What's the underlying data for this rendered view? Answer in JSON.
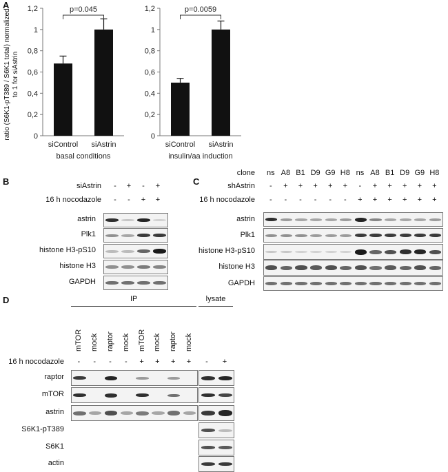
{
  "panels": {
    "a": "A",
    "b": "B",
    "c": "C",
    "d": "D"
  },
  "chart_data": [
    {
      "type": "bar",
      "categories": [
        "siControl",
        "siAstrin"
      ],
      "values": [
        0.68,
        1.0
      ],
      "errors": [
        0.07,
        0.1
      ],
      "xlabel": "basal conditions",
      "ylabel": "ratio (S6K1-pT389 / S6K1 total) normalized to 1 for siAstrin",
      "yticks": [
        "0",
        "0,2",
        "0,4",
        "0,6",
        "0,8",
        "1",
        "1,2"
      ],
      "ylim": [
        0,
        1.2
      ],
      "annotation": "p=0.045",
      "bar_color": "#111111"
    },
    {
      "type": "bar",
      "categories": [
        "siControl",
        "siAstrin"
      ],
      "values": [
        0.5,
        1.0
      ],
      "errors": [
        0.04,
        0.08
      ],
      "xlabel": "insulin/aa induction",
      "ylabel": "",
      "yticks": [
        "0",
        "0,2",
        "0,4",
        "0,6",
        "0,8",
        "1",
        "1,2"
      ],
      "ylim": [
        0,
        1.2
      ],
      "annotation": "p=0.0059",
      "bar_color": "#111111"
    }
  ],
  "panel_b": {
    "conditions": [
      {
        "label": "siAstrin",
        "signs": [
          "-",
          "+",
          "-",
          "+"
        ]
      },
      {
        "label": "16 h nocodazole",
        "signs": [
          "-",
          "-",
          "+",
          "+"
        ]
      }
    ],
    "blots": [
      "astrin",
      "Plk1",
      "histone H3-pS10",
      "histone H3",
      "GAPDH"
    ]
  },
  "panel_c": {
    "clone_label": "clone",
    "clones": [
      "ns",
      "A8",
      "B1",
      "D9",
      "G9",
      "H8",
      "ns",
      "A8",
      "B1",
      "D9",
      "G9",
      "H8"
    ],
    "conditions": [
      {
        "label": "shAstrin",
        "signs": [
          "-",
          "+",
          "+",
          "+",
          "+",
          "+",
          "-",
          "+",
          "+",
          "+",
          "+",
          "+"
        ]
      },
      {
        "label": "16 h nocodazole",
        "signs": [
          "-",
          "-",
          "-",
          "-",
          "-",
          "-",
          "+",
          "+",
          "+",
          "+",
          "+",
          "+"
        ]
      }
    ],
    "blots": [
      "astrin",
      "Plk1",
      "histone H3-pS10",
      "histone H3",
      "GAPDH"
    ]
  },
  "panel_d": {
    "ip_label": "IP",
    "lysate_label": "lysate",
    "lanes": [
      "mTOR",
      "mock",
      "raptor",
      "mock",
      "mTOR",
      "mock",
      "raptor",
      "mock"
    ],
    "condition_label": "16 h nocodazole",
    "ip_signs": [
      "-",
      "-",
      "-",
      "-",
      "+",
      "+",
      "+",
      "+"
    ],
    "lysate_signs": [
      "-",
      "+"
    ],
    "blots": [
      "raptor",
      "mTOR",
      "astrin",
      "S6K1-pT389",
      "S6K1",
      "actin"
    ]
  }
}
